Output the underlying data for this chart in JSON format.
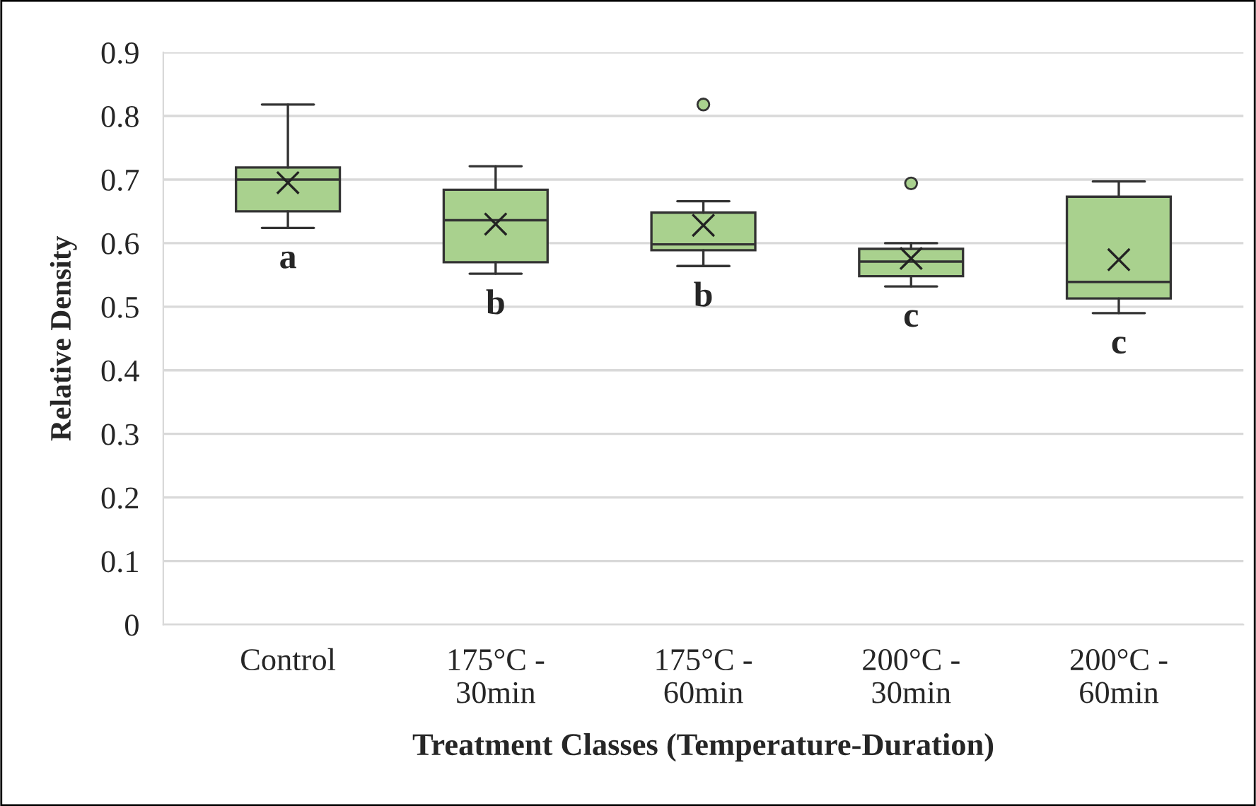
{
  "chart_data": {
    "type": "box",
    "xlabel": "Treatment Classes (Temperature-Duration)",
    "ylabel": "Relative Density",
    "categories": [
      "Control",
      "175°C -\n30min",
      "175°C -\n60min",
      "200°C -\n30min",
      "200°C -\n60min"
    ],
    "color": "#a9d18e",
    "boxes": [
      {
        "low": 0.624,
        "q1": 0.65,
        "median": 0.7,
        "q3": 0.719,
        "high": 0.818,
        "mean": 0.695
      },
      {
        "low": 0.552,
        "q1": 0.57,
        "median": 0.636,
        "q3": 0.684,
        "high": 0.721,
        "mean": 0.63
      },
      {
        "low": 0.564,
        "q1": 0.589,
        "median": 0.598,
        "q3": 0.648,
        "high": 0.666,
        "mean": 0.628,
        "outliers": [
          0.818
        ]
      },
      {
        "low": 0.532,
        "q1": 0.548,
        "median": 0.571,
        "q3": 0.591,
        "high": 0.6,
        "mean": 0.576,
        "outliers": [
          0.694
        ]
      },
      {
        "low": 0.49,
        "q1": 0.513,
        "median": 0.539,
        "q3": 0.673,
        "high": 0.697,
        "mean": 0.574
      }
    ],
    "annotations": [
      "a",
      "b",
      "b",
      "c",
      "c"
    ],
    "ylim": [
      0,
      0.9
    ],
    "yticks": [
      0,
      0.1,
      0.2,
      0.3,
      0.4,
      0.5,
      0.6,
      0.7,
      0.8,
      0.9
    ],
    "grid": "y",
    "legend": false
  }
}
